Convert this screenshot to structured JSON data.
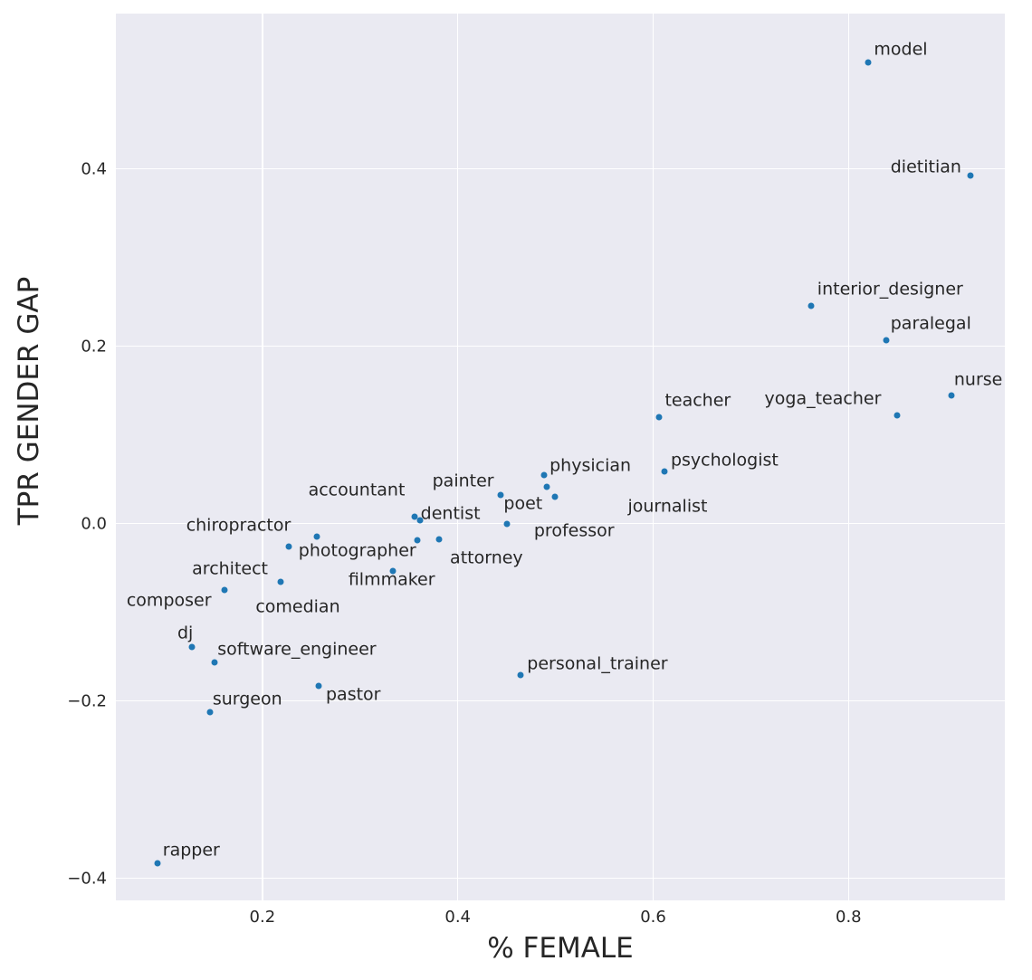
{
  "chart_data": {
    "type": "scatter",
    "title": "",
    "xlabel": "% FEMALE",
    "ylabel": "TPR GENDER GAP",
    "xlim": [
      0.05,
      0.96
    ],
    "ylim": [
      -0.425,
      0.575
    ],
    "grid": true,
    "legend": false,
    "xticks": {
      "values": [
        0.2,
        0.4,
        0.6,
        0.8
      ],
      "labels": [
        "0.2",
        "0.4",
        "0.6",
        "0.8"
      ]
    },
    "yticks": {
      "values": [
        0.4,
        0.2,
        0.0,
        -0.2,
        -0.4
      ],
      "labels": [
        "0.4",
        "0.2",
        "0.0",
        "−0.2",
        "−0.4"
      ]
    },
    "style": {
      "background": "#EAEAF2",
      "grid_color": "#FFFFFF",
      "dot_color": "#1F77B4",
      "text_color": "#262626"
    },
    "points": [
      {
        "label": "model",
        "x": 0.82,
        "y": 0.52,
        "label_x": 0.826,
        "label_y": 0.534
      },
      {
        "label": "dietitian",
        "x": 0.925,
        "y": 0.392,
        "label_x": 0.843,
        "label_y": 0.402
      },
      {
        "label": "interior_designer",
        "x": 0.762,
        "y": 0.245,
        "label_x": 0.768,
        "label_y": 0.264
      },
      {
        "label": "paralegal",
        "x": 0.839,
        "y": 0.207,
        "label_x": 0.843,
        "label_y": 0.225
      },
      {
        "label": "nurse",
        "x": 0.905,
        "y": 0.144,
        "label_x": 0.908,
        "label_y": 0.162
      },
      {
        "label": "yoga_teacher",
        "x": 0.85,
        "y": 0.122,
        "label_x": 0.714,
        "label_y": 0.14
      },
      {
        "label": "teacher",
        "x": 0.606,
        "y": 0.12,
        "label_x": 0.612,
        "label_y": 0.138
      },
      {
        "label": "psychologist",
        "x": 0.612,
        "y": 0.059,
        "label_x": 0.618,
        "label_y": 0.071
      },
      {
        "label": "physician",
        "x": 0.488,
        "y": 0.055,
        "label_x": 0.494,
        "label_y": 0.065
      },
      {
        "label": "journalist",
        "x": 0.499,
        "y": 0.03,
        "label_x": 0.574,
        "label_y": 0.019
      },
      {
        "label": "poet",
        "x": 0.491,
        "y": 0.041,
        "label_x": 0.447,
        "label_y": 0.022
      },
      {
        "label": "painter",
        "x": 0.444,
        "y": 0.032,
        "label_x": 0.374,
        "label_y": 0.047
      },
      {
        "label": "accountant",
        "x": 0.356,
        "y": 0.008,
        "label_x": 0.247,
        "label_y": 0.037
      },
      {
        "label": "dentist",
        "x": 0.361,
        "y": 0.004,
        "label_x": 0.362,
        "label_y": 0.011
      },
      {
        "label": "professor",
        "x": 0.45,
        "y": -0.001,
        "label_x": 0.478,
        "label_y": -0.009
      },
      {
        "label": "chiropractor",
        "x": 0.256,
        "y": -0.015,
        "label_x": 0.122,
        "label_y": -0.003
      },
      {
        "label": "photographer",
        "x": 0.359,
        "y": -0.019,
        "label_x": 0.237,
        "label_y": -0.031
      },
      {
        "label": "attorney",
        "x": 0.381,
        "y": -0.018,
        "label_x": 0.392,
        "label_y": -0.039
      },
      {
        "label": "filmmaker",
        "x": 0.334,
        "y": -0.054,
        "label_x": 0.288,
        "label_y": -0.064
      },
      {
        "label": "architect",
        "x": 0.219,
        "y": -0.066,
        "label_x": 0.128,
        "label_y": -0.052
      },
      {
        "label": "comedian",
        "x": 0.227,
        "y": -0.026,
        "label_x": 0.193,
        "label_y": -0.094
      },
      {
        "label": "composer",
        "x": 0.161,
        "y": -0.075,
        "label_x": 0.061,
        "label_y": -0.087
      },
      {
        "label": "dj",
        "x": 0.128,
        "y": -0.139,
        "label_x": 0.113,
        "label_y": -0.124
      },
      {
        "label": "software_engineer",
        "x": 0.151,
        "y": -0.157,
        "label_x": 0.154,
        "label_y": -0.142
      },
      {
        "label": "surgeon",
        "x": 0.146,
        "y": -0.213,
        "label_x": 0.149,
        "label_y": -0.198
      },
      {
        "label": "pastor",
        "x": 0.258,
        "y": -0.183,
        "label_x": 0.265,
        "label_y": -0.193
      },
      {
        "label": "personal_trainer",
        "x": 0.464,
        "y": -0.171,
        "label_x": 0.471,
        "label_y": -0.159
      },
      {
        "label": "rapper",
        "x": 0.093,
        "y": -0.383,
        "label_x": 0.098,
        "label_y": -0.369
      }
    ]
  }
}
